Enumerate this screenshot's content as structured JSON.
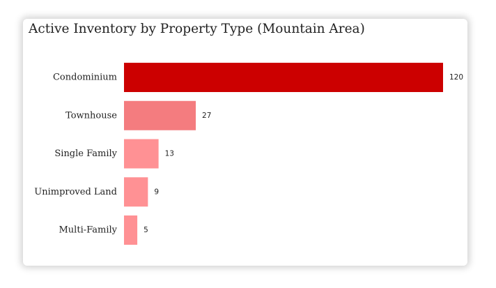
{
  "chart_data": {
    "type": "bar",
    "orientation": "horizontal",
    "title": "Active Inventory by Property Type (Mountain Area)",
    "categories": [
      "Condominium",
      "Townhouse",
      "Single Family",
      "Unimproved Land",
      "Multi-Family"
    ],
    "values": [
      120,
      27,
      13,
      9,
      5
    ],
    "colors": [
      "#cc0000",
      "#f47c7f",
      "#ff9194",
      "#ff9194",
      "#ff9194"
    ],
    "xlim": [
      0,
      120
    ],
    "grid": false,
    "legend": "none"
  }
}
